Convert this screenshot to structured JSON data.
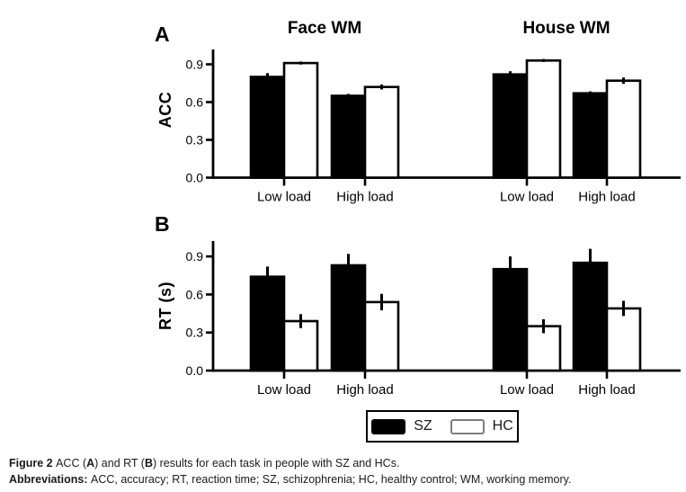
{
  "figure": {
    "background_color": "#ffffff",
    "ink_color": "#000000",
    "hc_swatch_border_color": "#7d7d7d"
  },
  "chart_data": {
    "type": "bar",
    "panels": [
      {
        "id": "A",
        "label": "A",
        "ylabel": "ACC",
        "yticks": [
          "0.0",
          "0.3",
          "0.6",
          "0.9"
        ],
        "ylim": [
          0,
          1.02
        ],
        "grid": false,
        "groups": [
          "Face WM",
          "House WM"
        ],
        "categories": [
          "Low load",
          "High load",
          "Low load",
          "High load"
        ],
        "series": [
          {
            "name": "SZ",
            "fill": "#000000",
            "values": [
              0.8,
              0.65,
              0.82,
              0.67
            ],
            "errors": [
              0.03,
              0.015,
              0.025,
              0.015
            ]
          },
          {
            "name": "HC",
            "fill": "#ffffff",
            "values": [
              0.91,
              0.72,
              0.93,
              0.77
            ],
            "errors": [
              0.012,
              0.02,
              0.012,
              0.025
            ]
          }
        ]
      },
      {
        "id": "B",
        "label": "B",
        "ylabel": "RT (s)",
        "yticks": [
          "0.0",
          "0.3",
          "0.6",
          "0.9"
        ],
        "ylim": [
          0,
          1.02
        ],
        "grid": false,
        "groups": [
          "Face WM",
          "House WM"
        ],
        "categories": [
          "Low load",
          "High load",
          "Low load",
          "High load"
        ],
        "series": [
          {
            "name": "SZ",
            "fill": "#000000",
            "values": [
              0.74,
              0.83,
              0.8,
              0.85
            ],
            "errors": [
              0.08,
              0.09,
              0.1,
              0.11
            ]
          },
          {
            "name": "HC",
            "fill": "#ffffff",
            "values": [
              0.39,
              0.54,
              0.35,
              0.49
            ],
            "errors": [
              0.055,
              0.065,
              0.055,
              0.06
            ]
          }
        ]
      }
    ],
    "legend": {
      "position": "bottom-center",
      "items": [
        {
          "label": "SZ",
          "fill": "#000000"
        },
        {
          "label": "HC",
          "fill": "#ffffff"
        }
      ]
    }
  },
  "caption": {
    "line1": [
      {
        "b": "Figure 2 "
      },
      {
        "t": "ACC ("
      },
      {
        "b": "A"
      },
      {
        "t": ") and RT ("
      },
      {
        "b": "B"
      },
      {
        "t": ") results for each task in people with SZ and HCs."
      }
    ],
    "line2": [
      {
        "b": "Abbreviations: "
      },
      {
        "t": "ACC, accuracy; RT, reaction time; SZ, schizophrenia; HC, healthy control; WM, working memory."
      }
    ]
  }
}
